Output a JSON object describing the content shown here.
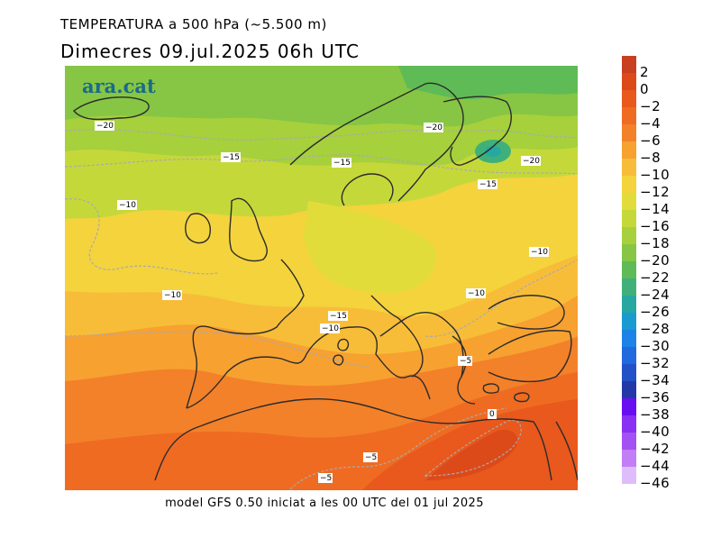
{
  "header": {
    "title": "TEMPERATURA a 500 hPa (~5.500 m)",
    "subtitle": "Dimecres  09.jul.2025 06h  UTC"
  },
  "footer": "model GFS 0.50 iniciat a les 00 UTC del 01 jul 2025",
  "logo": "ara.cat",
  "colorbar": [
    {
      "label": "2",
      "color": "#c8401e"
    },
    {
      "label": "0",
      "color": "#dc4a1a"
    },
    {
      "label": "−2",
      "color": "#e9581c"
    },
    {
      "label": "−4",
      "color": "#ef6b22"
    },
    {
      "label": "−6",
      "color": "#f38129"
    },
    {
      "label": "−8",
      "color": "#f7a131"
    },
    {
      "label": "−10",
      "color": "#f8bd38"
    },
    {
      "label": "−12",
      "color": "#f4d33d"
    },
    {
      "label": "−14",
      "color": "#e2dc3b"
    },
    {
      "label": "−16",
      "color": "#c5d83a"
    },
    {
      "label": "−18",
      "color": "#a6d03c"
    },
    {
      "label": "−20",
      "color": "#86c644"
    },
    {
      "label": "−22",
      "color": "#5fbb55"
    },
    {
      "label": "−24",
      "color": "#3fb07a"
    },
    {
      "label": "−26",
      "color": "#26a7a2"
    },
    {
      "label": "−28",
      "color": "#1a9bd0"
    },
    {
      "label": "−30",
      "color": "#1d83e6"
    },
    {
      "label": "−32",
      "color": "#2069df"
    },
    {
      "label": "−34",
      "color": "#2151c6"
    },
    {
      "label": "−36",
      "color": "#2139a6"
    },
    {
      "label": "−38",
      "color": "#6a0ef2"
    },
    {
      "label": "−40",
      "color": "#8a2ff4"
    },
    {
      "label": "−42",
      "color": "#a451f4"
    },
    {
      "label": "−44",
      "color": "#c17ef7"
    },
    {
      "label": "−46",
      "color": "#dfbdfa"
    }
  ],
  "contour_labels": [
    {
      "text": "−20"
    },
    {
      "text": "−20"
    },
    {
      "text": "−20"
    },
    {
      "text": "−15"
    },
    {
      "text": "−15"
    },
    {
      "text": "−15"
    },
    {
      "text": "−10"
    },
    {
      "text": "−10"
    },
    {
      "text": "−10"
    },
    {
      "text": "−10"
    },
    {
      "text": "−15"
    },
    {
      "text": "−10"
    },
    {
      "text": "−5"
    },
    {
      "text": "−5"
    },
    {
      "text": "−5"
    },
    {
      "text": "0"
    }
  ]
}
